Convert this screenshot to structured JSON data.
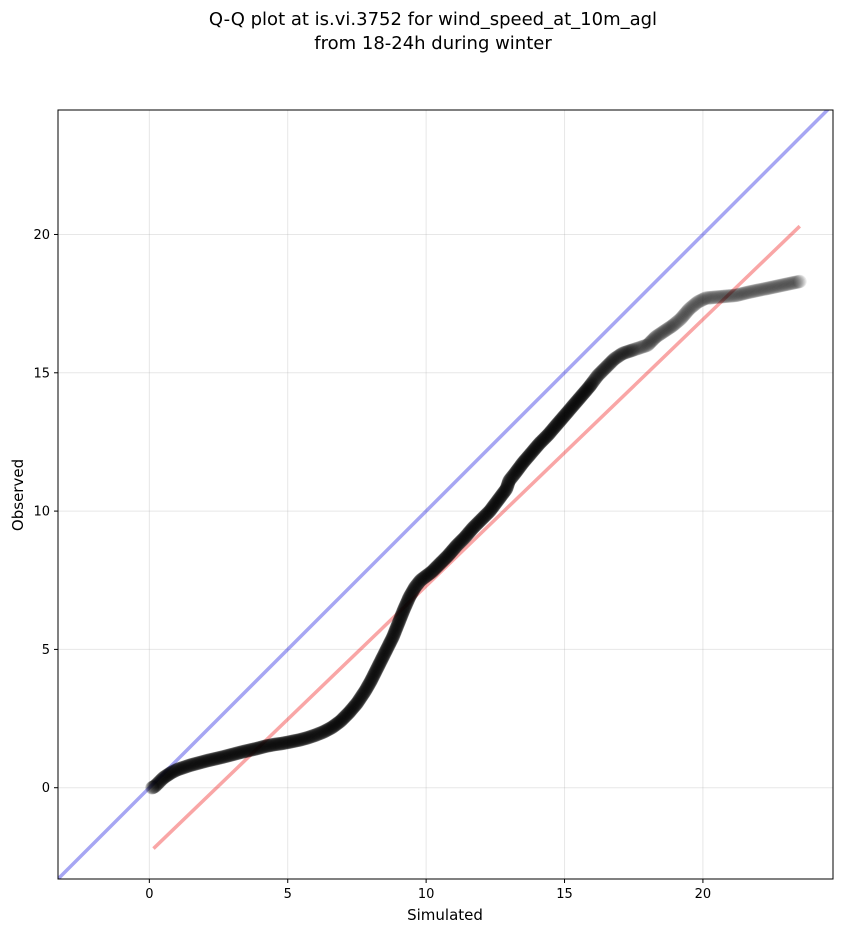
{
  "chart_data": {
    "type": "scatter",
    "title": "Q-Q plot at is.vi.3752 for wind_speed_at_10m_agl",
    "subtitle": "from 18-24h during winter",
    "xlabel": "Simulated",
    "ylabel": "Observed",
    "xlim": [
      -3.3,
      24.7
    ],
    "ylim": [
      -3.3,
      24.5
    ],
    "xticks": [
      0,
      5,
      10,
      15,
      20
    ],
    "yticks": [
      0,
      5,
      10,
      15,
      20
    ],
    "grid": true,
    "colors": {
      "points": "#000000",
      "identity_line": "#0000dd",
      "fit_line": "#ee0000"
    },
    "lines": [
      {
        "kind": "identity",
        "color": "#0000dd",
        "x": [
          -3.3,
          24.7
        ],
        "y": [
          -3.3,
          24.7
        ]
      },
      {
        "kind": "fit",
        "color": "#ee0000",
        "x": [
          0.15,
          23.5
        ],
        "y": [
          -2.2,
          20.3
        ]
      }
    ],
    "series": [
      {
        "x": [
          0.1,
          0.2,
          0.3,
          0.4,
          0.5,
          0.6,
          0.8,
          1.0,
          1.2,
          1.5,
          1.8,
          2.1,
          2.4,
          2.7,
          3.0,
          3.3,
          3.6,
          3.9,
          4.2,
          4.5,
          4.8,
          5.1,
          5.4,
          5.7,
          6.0,
          6.3,
          6.6,
          6.9,
          7.2,
          7.5,
          7.8,
          8.0,
          8.2,
          8.4,
          8.6,
          8.8,
          9.0,
          9.2,
          9.4,
          9.6,
          9.8,
          10.0,
          10.2,
          10.5,
          10.8,
          11.1,
          11.4,
          11.7,
          12.0,
          12.3,
          12.6,
          12.9,
          13.0,
          13.2,
          13.5,
          13.8,
          14.1,
          14.4,
          14.7,
          15.0,
          15.3,
          15.6,
          15.9,
          16.2,
          16.5,
          16.8,
          17.1,
          17.4,
          17.7,
          18.0,
          18.3,
          18.6,
          18.9,
          19.2,
          19.5,
          19.8,
          20.1,
          21.2,
          21.6,
          23.5
        ],
        "y": [
          0.0,
          0.05,
          0.15,
          0.25,
          0.35,
          0.42,
          0.55,
          0.65,
          0.72,
          0.82,
          0.9,
          0.98,
          1.05,
          1.12,
          1.2,
          1.28,
          1.35,
          1.42,
          1.5,
          1.56,
          1.6,
          1.66,
          1.72,
          1.8,
          1.9,
          2.02,
          2.18,
          2.4,
          2.7,
          3.05,
          3.5,
          3.85,
          4.25,
          4.65,
          5.05,
          5.45,
          5.95,
          6.45,
          6.9,
          7.25,
          7.5,
          7.65,
          7.8,
          8.1,
          8.4,
          8.75,
          9.05,
          9.4,
          9.7,
          10.0,
          10.4,
          10.8,
          11.1,
          11.35,
          11.75,
          12.1,
          12.45,
          12.75,
          13.1,
          13.45,
          13.8,
          14.15,
          14.5,
          14.9,
          15.2,
          15.5,
          15.7,
          15.8,
          15.9,
          16.0,
          16.3,
          16.5,
          16.7,
          16.95,
          17.3,
          17.55,
          17.7,
          17.8,
          17.9,
          18.3
        ]
      }
    ]
  }
}
